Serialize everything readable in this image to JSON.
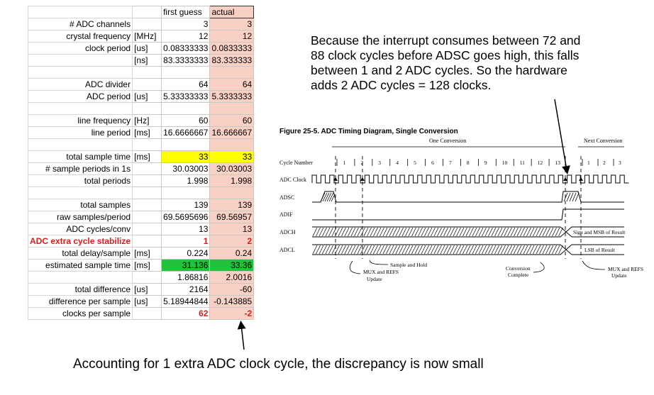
{
  "spreadsheet": {
    "columns": [
      "",
      "",
      "first guess",
      "actual"
    ],
    "rows": [
      {
        "label": "# ADC channels",
        "unit": "",
        "first": "3",
        "actual": "3"
      },
      {
        "label": "crystal frequency",
        "unit": "[MHz]",
        "first": "12",
        "actual": "12"
      },
      {
        "label": "clock period",
        "unit": "[us]",
        "first": "0.08333333",
        "actual": "0.0833333"
      },
      {
        "label": "",
        "unit": "[ns]",
        "first": "83.3333333",
        "actual": "83.333333"
      },
      {
        "label": "",
        "unit": "",
        "first": "",
        "actual": ""
      },
      {
        "label": "ADC divider",
        "unit": "",
        "first": "64",
        "actual": "64"
      },
      {
        "label": "ADC period",
        "unit": "[us]",
        "first": "5.33333333",
        "actual": "5.3333333"
      },
      {
        "label": "",
        "unit": "",
        "first": "",
        "actual": ""
      },
      {
        "label": "line frequency",
        "unit": "[Hz]",
        "first": "60",
        "actual": "60"
      },
      {
        "label": "line period",
        "unit": "[ms]",
        "first": "16.6666667",
        "actual": "16.666667"
      },
      {
        "label": "",
        "unit": "",
        "first": "",
        "actual": ""
      },
      {
        "label": "total sample time",
        "unit": "[ms]",
        "first": "33",
        "actual": "33",
        "highlight": "yellow"
      },
      {
        "label": "# sample periods in 1s",
        "unit": "",
        "first": "30.03003",
        "actual": "30.03003"
      },
      {
        "label": "total periods",
        "unit": "",
        "first": "1.998",
        "actual": "1.998"
      },
      {
        "label": "",
        "unit": "",
        "first": "",
        "actual": ""
      },
      {
        "label": "total samples",
        "unit": "",
        "first": "139",
        "actual": "139"
      },
      {
        "label": "raw samples/period",
        "unit": "",
        "first": "69.5695696",
        "actual": "69.56957"
      },
      {
        "label": "ADC cycles/conv",
        "unit": "",
        "first": "13",
        "actual": "13"
      },
      {
        "label": "ADC extra cycle stabilize",
        "unit": "",
        "first": "1",
        "actual": "2",
        "red": true
      },
      {
        "label": "total delay/sample",
        "unit": "[ms]",
        "first": "0.224",
        "actual": "0.24"
      },
      {
        "label": "estimated sample time",
        "unit": "[ms]",
        "first": "31.136",
        "actual": "33.36",
        "highlight": "green"
      },
      {
        "label": "",
        "unit": "",
        "first": "1.86816",
        "actual": "2.0016"
      },
      {
        "label": "total difference",
        "unit": "[us]",
        "first": "2164",
        "actual": "-60"
      },
      {
        "label": "difference per sample",
        "unit": "[us]",
        "first": "5.18944844",
        "actual": "-0.143885"
      },
      {
        "label": "clocks per sample",
        "unit": "",
        "first": "62",
        "actual": "-2",
        "redValues": true
      }
    ]
  },
  "annotations": {
    "top": "Because the interrupt consumes between 72 and 88 clock cycles before ADSC goes high, this falls between 1 and 2 ADC cycles. So the hardware adds 2 ADC cycles = 128 clocks.",
    "bottom": "Accounting for 1 extra ADC clock cycle, the discrepancy is now small"
  },
  "figure": {
    "title": "Figure 25-5.  ADC Timing Diagram, Single Conversion",
    "one_conversion": "One Conversion",
    "next_conversion": "Next Conversion",
    "signals": [
      "Cycle Number",
      "ADC Clock",
      "ADSC",
      "ADIF",
      "ADCH",
      "ADCL"
    ],
    "cycle_numbers": [
      "1",
      "2",
      "3",
      "4",
      "5",
      "6",
      "7",
      "8",
      "9",
      "10",
      "11",
      "12",
      "13",
      "1",
      "2",
      "3"
    ],
    "adch_result": "Sign and MSB of Result",
    "adcl_result": "LSB of Result",
    "callouts": {
      "sample_hold": "Sample and Hold",
      "mux_update_1": "MUX and REFS",
      "mux_update_2": "Update",
      "conv_complete_1": "Conversion",
      "conv_complete_2": "Complete"
    }
  }
}
